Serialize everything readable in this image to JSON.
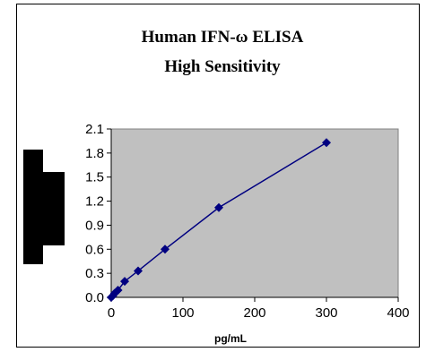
{
  "chart_data": {
    "type": "scatter",
    "title_line1": "Human IFN-ω ELISA",
    "title_line2": "High Sensitivity",
    "xlabel": "pg/mL",
    "ylabel": "",
    "xlim": [
      0,
      400
    ],
    "ylim": [
      0,
      2.1
    ],
    "x_ticks": [
      "0",
      "100",
      "200",
      "300",
      "400"
    ],
    "y_ticks": [
      "0.0",
      "0.3",
      "0.6",
      "0.9",
      "1.2",
      "1.5",
      "1.8",
      "2.1"
    ],
    "grid": false,
    "legend": "none",
    "series": [
      {
        "x": [
          0,
          2.3,
          4.7,
          9.4,
          18.8,
          37.5,
          75,
          150,
          300
        ],
        "y": [
          0.0,
          0.02,
          0.05,
          0.09,
          0.2,
          0.33,
          0.6,
          1.12,
          1.93
        ]
      }
    ],
    "colors": {
      "plot_area": "#c0c0c0",
      "series": "#000080"
    }
  }
}
